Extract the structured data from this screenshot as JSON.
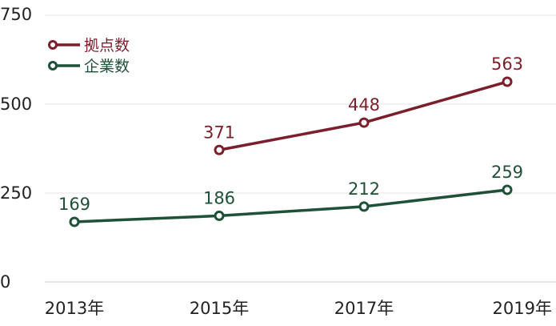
{
  "chart_data": {
    "type": "line",
    "title": "",
    "xlabel": "",
    "ylabel": "",
    "x": [
      "2013年",
      "2015年",
      "2017年",
      "2019年"
    ],
    "ylim": [
      0,
      750
    ],
    "yticks": [
      "0",
      "250",
      "500",
      "750"
    ],
    "grid": true,
    "legend_position": "top-left",
    "series": [
      {
        "name": "拠点数",
        "color": "#7a1f2b",
        "values": [
          null,
          371,
          448,
          563
        ]
      },
      {
        "name": "企業数",
        "color": "#1f5038",
        "values": [
          169,
          186,
          212,
          259
        ]
      }
    ]
  }
}
